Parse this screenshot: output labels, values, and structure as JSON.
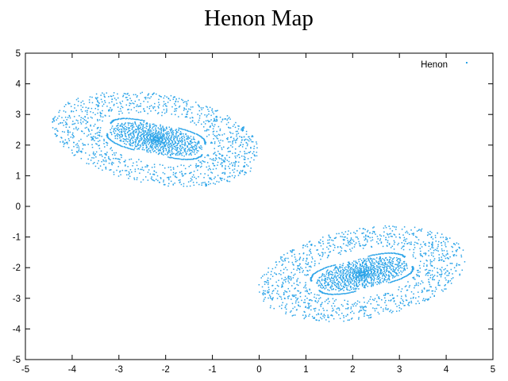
{
  "chart_data": {
    "type": "scatter",
    "title": "Henon Map",
    "xlabel": "",
    "ylabel": "",
    "xlim": [
      -5,
      5
    ],
    "ylim": [
      -5,
      5
    ],
    "x_ticks": [
      -5,
      -4,
      -3,
      -2,
      -1,
      0,
      1,
      2,
      3,
      4,
      5
    ],
    "y_ticks": [
      -5,
      -4,
      -3,
      -2,
      -1,
      0,
      1,
      2,
      3,
      4,
      5
    ],
    "x_tick_labels": [
      "-5",
      "-4",
      "-3",
      "-2",
      "-1",
      "0",
      "1",
      "2",
      "3",
      "4",
      "5"
    ],
    "y_tick_labels": [
      "-5",
      "-4",
      "-3",
      "-2",
      "-1",
      "0",
      "1",
      "2",
      "3",
      "4",
      "5"
    ],
    "grid": false,
    "legend_position": "top-right",
    "series": [
      {
        "name": "Henon",
        "color": "#2aa3e8",
        "clusters": [
          {
            "center": [
              -2.2,
              2.2
            ],
            "core_radii": [
              1.0,
              0.45
            ],
            "halo_radii": [
              2.1,
              1.2
            ],
            "orientation_deg": -20
          },
          {
            "center": [
              2.2,
              -2.2
            ],
            "core_radii": [
              1.0,
              0.45
            ],
            "halo_radii": [
              2.1,
              1.2
            ],
            "orientation_deg": 20
          }
        ]
      }
    ]
  }
}
